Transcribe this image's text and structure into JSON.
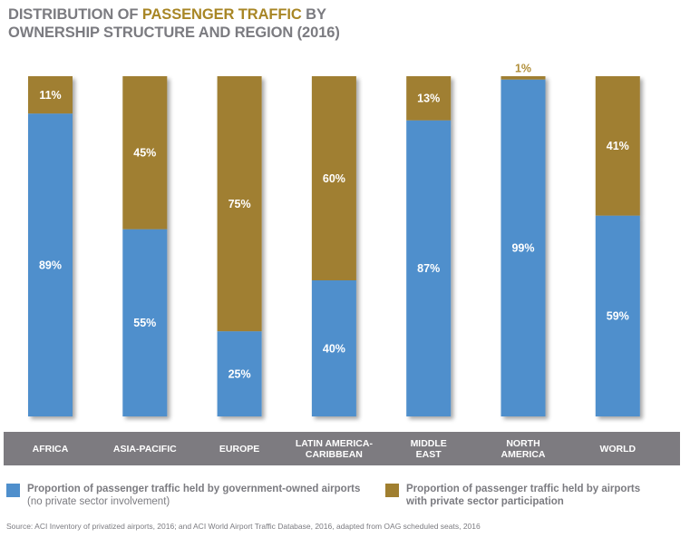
{
  "title": {
    "part1": "DISTRIBUTION OF ",
    "highlight": "PASSENGER TRAFFIC",
    "part2": " BY",
    "line2": "OWNERSHIP STRUCTURE AND REGION (2016)"
  },
  "colors": {
    "government": "#4f8fcc",
    "private": "#a07f30",
    "private_label_outside": "#b08e38",
    "band": "#7d7b80",
    "text_gray": "#7b7b80"
  },
  "chart_data": {
    "type": "bar",
    "stacked": true,
    "orientation": "vertical",
    "title": "Distribution of Passenger Traffic by Ownership Structure and Region (2016)",
    "xlabel": "",
    "ylabel": "",
    "ylim": [
      0,
      100
    ],
    "grid": false,
    "legend_position": "bottom",
    "categories": [
      "AFRICA",
      "ASIA-PACIFIC",
      "EUROPE",
      "LATIN AMERICA-\nCARIBBEAN",
      "MIDDLE\nEAST",
      "NORTH\nAMERICA",
      "WORLD"
    ],
    "series": [
      {
        "name": "Proportion of passenger traffic held by government-owned airports (no private sector involvement)",
        "key": "government",
        "values": [
          89,
          55,
          25,
          40,
          87,
          99,
          59
        ],
        "labels": [
          "89%",
          "55%",
          "25%",
          "40%",
          "87%",
          "99%",
          "59%"
        ]
      },
      {
        "name": "Proportion of passenger traffic held by airports with private sector participation",
        "key": "private",
        "values": [
          11,
          45,
          75,
          60,
          13,
          1,
          41
        ],
        "labels": [
          "11%",
          "45%",
          "75%",
          "60%",
          "13%",
          "1%",
          "41%"
        ]
      }
    ]
  },
  "legend": {
    "government": {
      "line1": "Proportion of passenger traffic held by government-owned airports",
      "line2": "(no private sector involvement)"
    },
    "private": {
      "line1": "Proportion of passenger traffic held by airports",
      "line2": "with private sector participation"
    }
  },
  "source": "Source: ACI Inventory of privatized airports, 2016; and ACI World Airport Traffic Database, 2016, adapted from OAG scheduled seats, 2016"
}
